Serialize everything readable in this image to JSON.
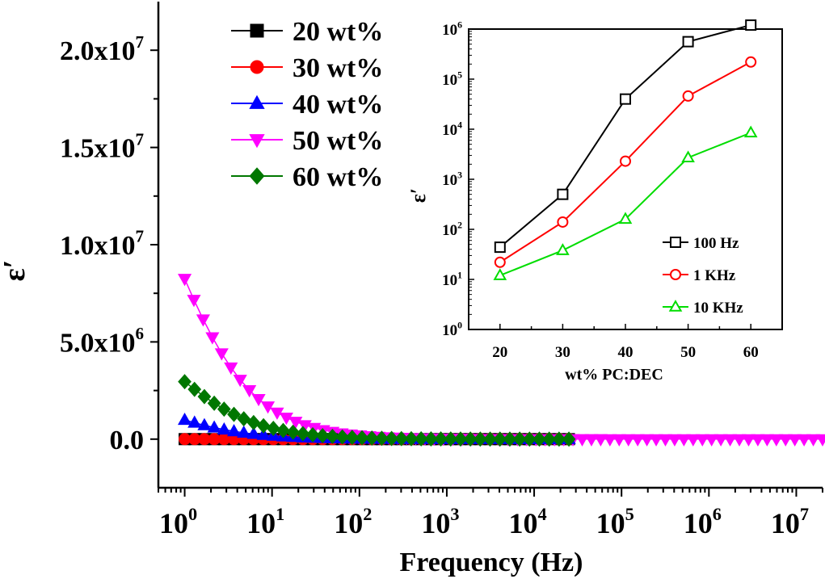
{
  "chart_data": [
    {
      "type": "scatter",
      "xlabel": "Frequency (Hz)",
      "ylabel": "ε′",
      "xscale": "log",
      "xlim": [
        0.5,
        20000000
      ],
      "ylim": [
        -2500000,
        22500000
      ],
      "x_ticks": [
        {
          "value": 1,
          "base": "10",
          "exp": "0"
        },
        {
          "value": 10,
          "base": "10",
          "exp": "1"
        },
        {
          "value": 100,
          "base": "10",
          "exp": "2"
        },
        {
          "value": 1000,
          "base": "10",
          "exp": "3"
        },
        {
          "value": 10000,
          "base": "10",
          "exp": "4"
        },
        {
          "value": 100000,
          "base": "10",
          "exp": "5"
        },
        {
          "value": 1000000,
          "base": "10",
          "exp": "6"
        },
        {
          "value": 10000000,
          "base": "10",
          "exp": "7"
        }
      ],
      "y_ticks": [
        {
          "value": 0,
          "base": "0.0",
          "exp": ""
        },
        {
          "value": 5000000,
          "base": "5.0x10",
          "exp": "6"
        },
        {
          "value": 10000000,
          "base": "1.0x10",
          "exp": "7"
        },
        {
          "value": 15000000,
          "base": "1.5x10",
          "exp": "7"
        },
        {
          "value": 20000000,
          "base": "2.0x10",
          "exp": "7"
        }
      ],
      "legend_position": "top-left",
      "series": [
        {
          "name": "20 wt%",
          "color": "#000000",
          "marker": "square",
          "x_range": [
            1,
            25000
          ],
          "n_points": 40,
          "a": 40,
          "tau": 1.0
        },
        {
          "name": "30 wt%",
          "color": "#ff0000",
          "marker": "circle",
          "x_range": [
            1,
            25000
          ],
          "n_points": 40,
          "a": 140,
          "tau": 1.0
        },
        {
          "name": "40 wt%",
          "color": "#0000ff",
          "marker": "triangle-up",
          "x_range": [
            1,
            25000
          ],
          "n_points": 40,
          "a": 2700000,
          "tau": 0.55
        },
        {
          "name": "50 wt%",
          "color": "#ff00ff",
          "marker": "triangle-down",
          "x_range": [
            1,
            20000000
          ],
          "n_points": 70,
          "a": 20500000,
          "tau": 0.65
        },
        {
          "name": "60 wt%",
          "color": "#007700",
          "marker": "diamond",
          "x_range": [
            1,
            25000
          ],
          "n_points": 40,
          "a": 6900000,
          "tau": 0.73
        }
      ]
    },
    {
      "type": "line",
      "xlabel": "wt% PC:DEC",
      "ylabel": "ε′",
      "yscale": "log",
      "xlim": [
        15,
        65
      ],
      "ylim": [
        1,
        1000000
      ],
      "x": [
        20,
        30,
        40,
        50,
        60
      ],
      "x_ticks": [
        "20",
        "30",
        "40",
        "50",
        "60"
      ],
      "y_ticks": [
        {
          "value": 1,
          "base": "10",
          "exp": "0"
        },
        {
          "value": 10,
          "base": "10",
          "exp": "1"
        },
        {
          "value": 100,
          "base": "10",
          "exp": "2"
        },
        {
          "value": 1000,
          "base": "10",
          "exp": "3"
        },
        {
          "value": 10000,
          "base": "10",
          "exp": "4"
        },
        {
          "value": 100000,
          "base": "10",
          "exp": "5"
        },
        {
          "value": 1000000,
          "base": "10",
          "exp": "6"
        }
      ],
      "legend_position": "bottom-right",
      "series": [
        {
          "name": "100 Hz",
          "color": "#000000",
          "marker": "open-square",
          "values": [
            44,
            500,
            40000,
            560000,
            1200000
          ]
        },
        {
          "name": "1 KHz",
          "color": "#ff0000",
          "marker": "open-circle",
          "values": [
            22,
            140,
            2300,
            46000,
            220000
          ]
        },
        {
          "name": "10 KHz",
          "color": "#00dd00",
          "marker": "open-triangle",
          "values": [
            12,
            38,
            160,
            2700,
            8500
          ]
        }
      ]
    }
  ]
}
